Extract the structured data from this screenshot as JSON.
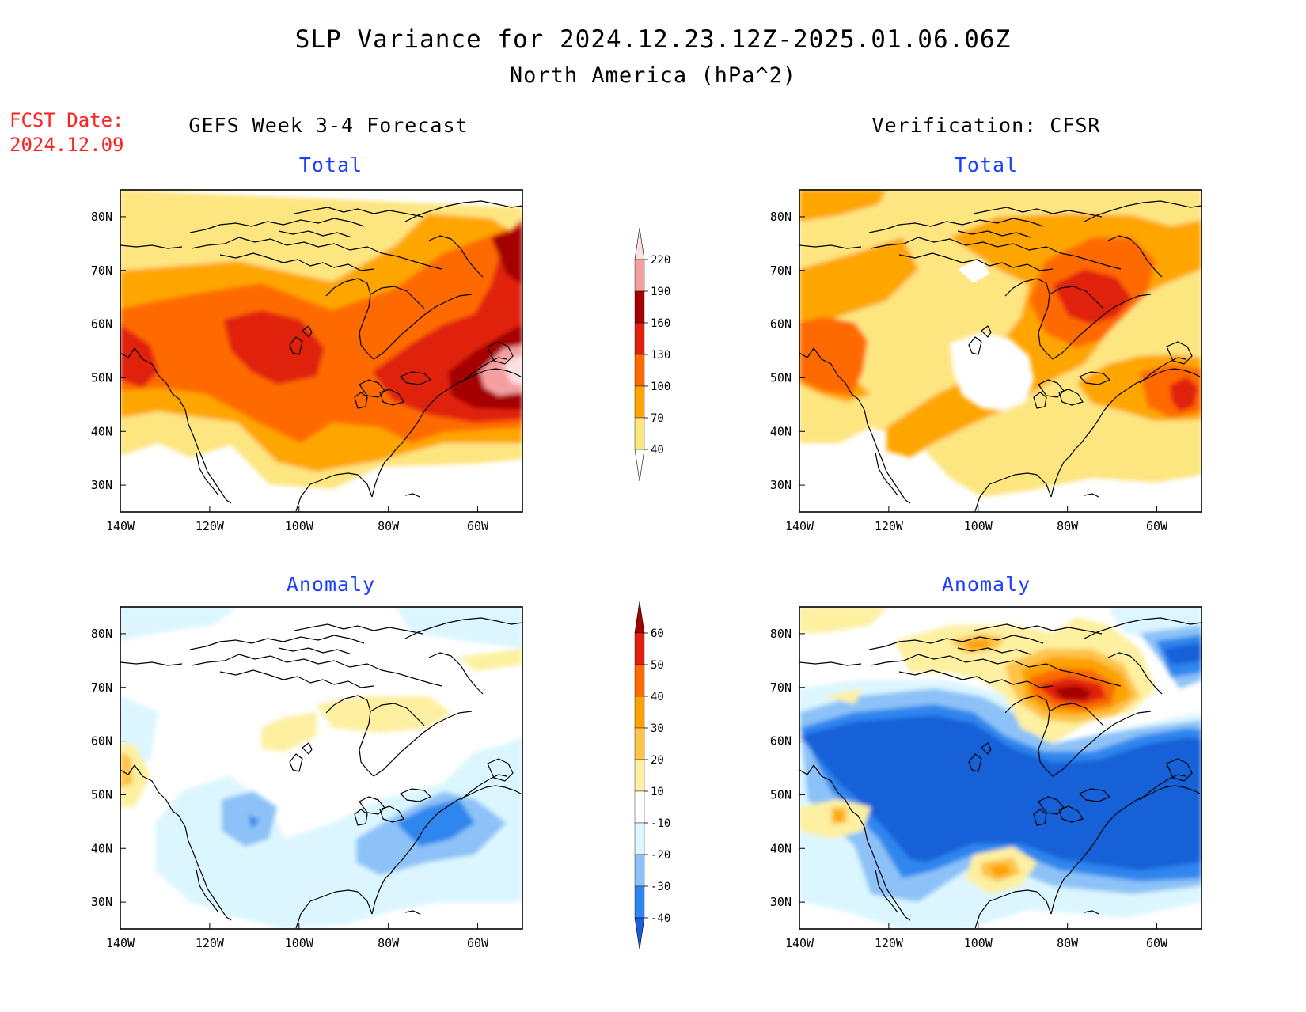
{
  "header": {
    "title": "SLP Variance for 2024.12.23.12Z-2025.01.06.06Z",
    "subtitle": "North America (hPa^2)",
    "fcst_label": "FCST Date:",
    "fcst_date": "2024.12.09"
  },
  "columns": {
    "left": "GEFS Week 3-4 Forecast",
    "right": "Verification: CFSR"
  },
  "panels": [
    {
      "id": "gefs-total",
      "label": "Total",
      "scale": "total"
    },
    {
      "id": "cfsr-total",
      "label": "Total",
      "scale": "total"
    },
    {
      "id": "gefs-anomaly",
      "label": "Anomaly",
      "scale": "anomaly"
    },
    {
      "id": "cfsr-anomaly",
      "label": "Anomaly",
      "scale": "anomaly"
    }
  ],
  "axes": {
    "lon_ticks": [
      "140W",
      "120W",
      "100W",
      "80W",
      "60W"
    ],
    "lat_ticks": [
      "80N",
      "70N",
      "60N",
      "50N",
      "40N",
      "30N"
    ],
    "lon_range": [
      -140,
      -50
    ],
    "lat_range": [
      25,
      85
    ]
  },
  "colorbars": {
    "total": {
      "levels": [
        "40",
        "70",
        "100",
        "130",
        "160",
        "190",
        "220"
      ],
      "colors": [
        "#fde580",
        "#ffa500",
        "#ff6a00",
        "#e0200c",
        "#a50000",
        "#f4a0a0",
        "#fde0e0"
      ]
    },
    "anomaly": {
      "levels": [
        "-40",
        "-30",
        "-20",
        "-10",
        "10",
        "20",
        "30",
        "40",
        "50",
        "60"
      ],
      "colors": [
        "#1560d8",
        "#2f86ee",
        "#8cc2f7",
        "#dcf6ff",
        "#ffffff",
        "#fdf0a0",
        "#fdc44a",
        "#fca300",
        "#fc6a00",
        "#e0200c",
        "#a50000"
      ]
    }
  }
}
